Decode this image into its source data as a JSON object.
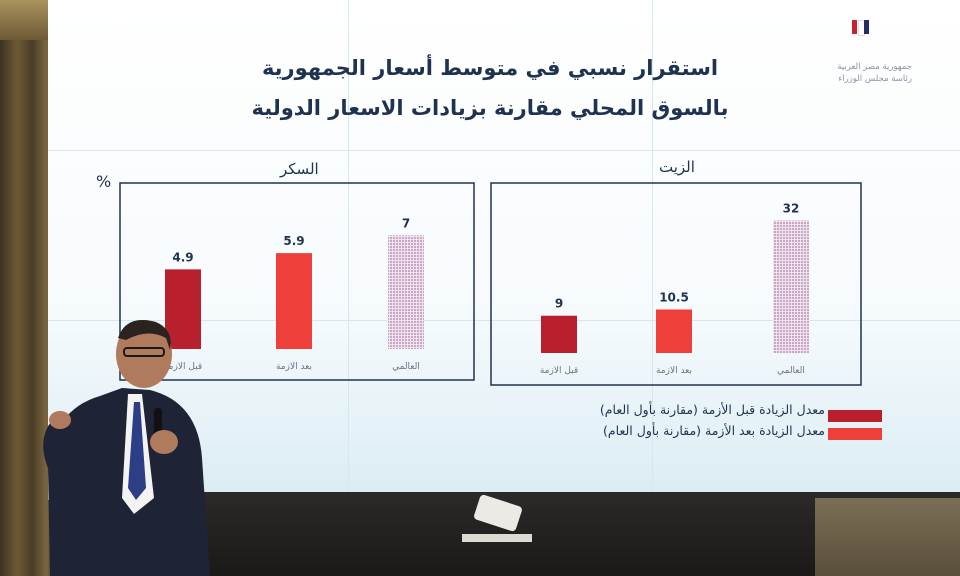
{
  "header": {
    "title_line1": "استقرار نسبي في متوسط أسعار الجمهورية",
    "title_line2": "بالسوق المحلي مقارنة بزيادات الاسعار الدولية",
    "org_line1": "جمهورية مصر العربية",
    "org_line2": "رئاسة مجلس الوزراء"
  },
  "unit_label": "%",
  "colors": {
    "before": "#b8202e",
    "after": "#ee3f3a",
    "global": "#c9a6c6",
    "frame": "#1f3350",
    "value_text": "#1f3350"
  },
  "chart_data": [
    {
      "type": "bar",
      "title": "الزيت",
      "categories": [
        "قبل الازمة",
        "بعد الازمة",
        "العالمي"
      ],
      "values": [
        9,
        10.5,
        32
      ],
      "value_labels": [
        "9",
        "10.5",
        "32"
      ],
      "bar_styles": [
        "before",
        "after",
        "global"
      ],
      "ylim": [
        0,
        35
      ]
    },
    {
      "type": "bar",
      "title": "السكر",
      "categories": [
        "قبل الازمة",
        "بعد الازمة",
        "العالمي"
      ],
      "values": [
        4.9,
        5.9,
        7
      ],
      "value_labels": [
        "4.9",
        "5.9",
        "7"
      ],
      "bar_styles": [
        "before",
        "after",
        "global"
      ],
      "ylim": [
        0,
        8
      ]
    }
  ],
  "legend": [
    {
      "label": "معدل الزيادة قبل الأزمة (مقارنة بأول العام)",
      "style": "before"
    },
    {
      "label": "معدل الزيادة بعد الأزمة (مقارنة بأول العام)",
      "style": "after"
    }
  ]
}
